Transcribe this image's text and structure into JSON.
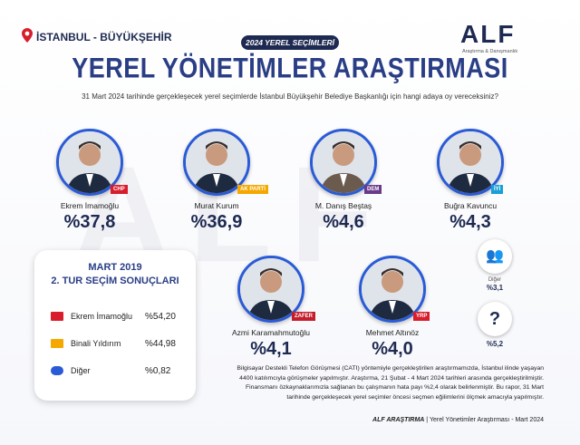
{
  "header": {
    "location": "İSTANBUL - BÜYÜKŞEHİR",
    "badge": "2024 YEREL SEÇİMLERİ",
    "logo": "ALF",
    "logo_subtitle": "Araştırma & Danışmanlık",
    "title": "YEREL YÖNETİMLER ARAŞTIRMASI",
    "question": "31 Mart 2024 tarihinde gerçekleşecek yerel seçimlerde İstanbul Büyükşehir Belediye Başkanlığı için hangi adaya oy vereceksiniz?"
  },
  "candidates": [
    {
      "name": "Ekrem İmamoğlu",
      "value": "%37,8",
      "party": "CHP"
    },
    {
      "name": "Murat Kurum",
      "value": "%36,9",
      "party": "AK PARTİ"
    },
    {
      "name": "M. Danış Beştaş",
      "value": "%4,6",
      "party": "DEM"
    },
    {
      "name": "Buğra Kavuncu",
      "value": "%4,3",
      "party": "İYİ"
    },
    {
      "name": "Azmi Karamahmutoğlu",
      "value": "%4,1",
      "party": "ZAFER"
    },
    {
      "name": "Mehmet Altınöz",
      "value": "%4,0",
      "party": "YRP"
    }
  ],
  "others": [
    {
      "icon": "👥",
      "label": "Diğer",
      "value": "%3,1"
    },
    {
      "icon": "?",
      "value": "%5,2"
    }
  ],
  "results_2019": {
    "title": "MART 2019",
    "subtitle": "2. TUR SEÇİM SONUÇLARI",
    "rows": [
      [
        "Ekrem İmamoğlu",
        "%54,20"
      ],
      [
        "Binali Yıldırım",
        "%44,98"
      ],
      [
        "Diğer",
        "%0,82"
      ]
    ]
  },
  "methodology": "Bilgisayar Destekli Telefon Görüşmesi (CATI) yöntemiyle gerçekleştirilen araştırmamızda, İstanbul ilinde yaşayan 4400 katılımcıyla görüşmeler yapılmıştır. Araştırma, 21 Şubat - 4 Mart 2024 tarihleri arasında gerçekleştirilmiştir. Finansmanı özkaynaklarımızla sağlanan bu çalışmanın hata payı %2,4 olarak belirlenmiştir. Bu rapor, 31 Mart tarihinde gerçekleşecek yerel seçimler öncesi seçmen eğilimlerini ölçmek amacıyla yapılmıştır.",
  "footer": {
    "brand": "ALF ARAŞTIRMA",
    "text": "Yerel Yönetimler Araştırması - Mart 2024"
  }
}
